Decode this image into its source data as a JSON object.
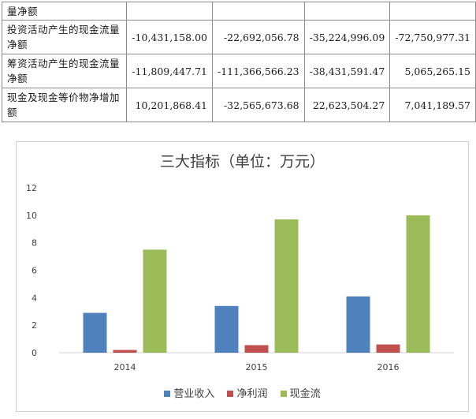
{
  "table": {
    "rows": [
      {
        "label": "量净额",
        "values": [
          "",
          "",
          "",
          ""
        ]
      },
      {
        "label": "投资活动产生的现金流量净额",
        "values": [
          "-10,431,158.00",
          "-22,692,056.78",
          "-35,224,996.09",
          "-72,750,977.31"
        ]
      },
      {
        "label": "筹资活动产生的现金流量净额",
        "values": [
          "-11,809,447.71",
          "-111,366,566.23",
          "-38,431,591.47",
          "5,065,265.15"
        ]
      },
      {
        "label": "现金及现金等价物净增加额",
        "values": [
          "10,201,868.41",
          "-32,565,673.68",
          "22,623,504.27",
          "7,041,189.57"
        ]
      }
    ]
  },
  "chart_data": {
    "type": "bar",
    "title": "三大指标（单位：万元）",
    "categories": [
      "2014",
      "2015",
      "2016"
    ],
    "series": [
      {
        "name": "营业收入",
        "values": [
          2.9,
          3.4,
          4.1
        ],
        "color": "#4f81bd"
      },
      {
        "name": "净利润",
        "values": [
          0.2,
          0.55,
          0.6
        ],
        "color": "#c0504d"
      },
      {
        "name": "现金流",
        "values": [
          7.5,
          9.7,
          10.0
        ],
        "color": "#9bbb59"
      }
    ],
    "ylim": [
      0,
      12
    ],
    "yticks": [
      "0",
      "2",
      "4",
      "6",
      "8",
      "10",
      "12"
    ],
    "grid": false,
    "legend_position": "bottom"
  }
}
